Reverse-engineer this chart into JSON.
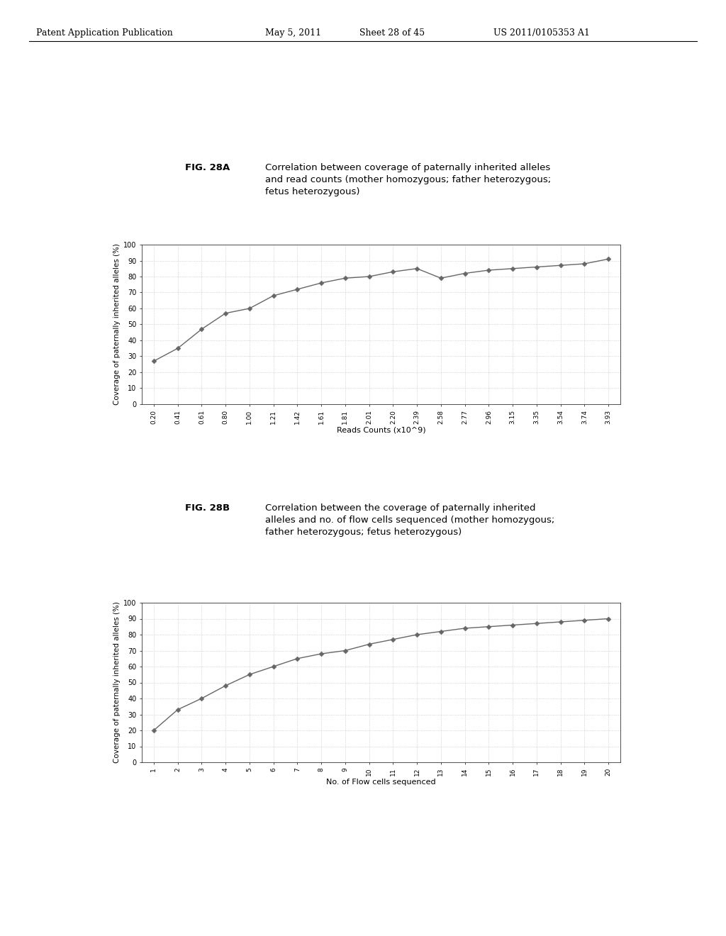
{
  "header_left": "Patent Application Publication",
  "header_mid1": "May 5, 2011",
  "header_mid2": "Sheet 28 of 45",
  "header_right": "US 2011/0105353 A1",
  "fig_a_label": "FIG. 28A",
  "fig_a_title": "Correlation between coverage of paternally inherited alleles\nand read counts (mother homozygous; father heterozygous;\nfetus heterozygous)",
  "fig_a_xlabel": "Reads Counts (x10^9)",
  "fig_a_ylabel": "Coverage of paternally inherited alleles (%)",
  "fig_a_xlabels": [
    "0.20",
    "0.41",
    "0.61",
    "0.80",
    "1.00",
    "1.21",
    "1.42",
    "1.61",
    "1.81",
    "2.01",
    "2.20",
    "2.39",
    "2.58",
    "2.77",
    "2.96",
    "3.15",
    "3.35",
    "3.54",
    "3.74",
    "3.93"
  ],
  "fig_a_y": [
    27,
    35,
    47,
    57,
    60,
    68,
    72,
    76,
    79,
    80,
    83,
    85,
    79,
    82,
    84,
    85,
    86,
    87,
    88,
    91
  ],
  "fig_b_label": "FIG. 28B",
  "fig_b_title": "Correlation between the coverage of paternally inherited\nalleles and no. of flow cells sequenced (mother homozygous;\nfather heterozygous; fetus heterozygous)",
  "fig_b_xlabel": "No. of Flow cells sequenced",
  "fig_b_ylabel": "Coverage of paternally inherited alleles (%)",
  "fig_b_xlabels": [
    "1",
    "2",
    "3",
    "4",
    "5",
    "6",
    "7",
    "8",
    "9",
    "10",
    "11",
    "12",
    "13",
    "14",
    "15",
    "16",
    "17",
    "18",
    "19",
    "20"
  ],
  "fig_b_y": [
    20,
    33,
    40,
    48,
    55,
    60,
    65,
    68,
    70,
    74,
    77,
    80,
    82,
    84,
    85,
    86,
    87,
    88,
    89,
    90
  ],
  "yticks": [
    0,
    10,
    20,
    30,
    40,
    50,
    60,
    70,
    80,
    90,
    100
  ],
  "line_color": "#666666",
  "marker": "D",
  "msize": 3.5,
  "grid_color": "#bbbbbb",
  "bg": "#ffffff"
}
